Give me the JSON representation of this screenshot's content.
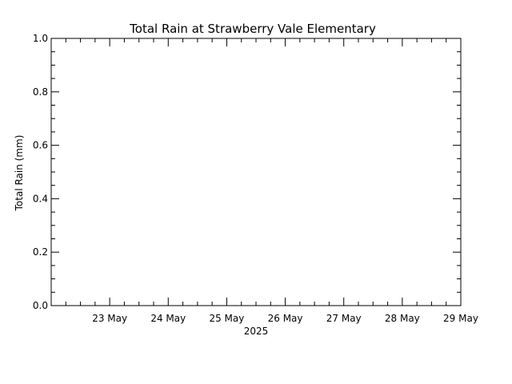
{
  "chart_data": {
    "type": "line",
    "title": "Total Rain at Strawberry Vale Elementary",
    "ylabel": "Total Rain (mm)",
    "xlabel": "2025",
    "ylim": [
      0,
      1
    ],
    "x_tick_labels": [
      "23 May",
      "24 May",
      "25 May",
      "26 May",
      "27 May",
      "28 May",
      "29 May"
    ],
    "xlim": [
      "2025-05-22T00:00",
      "2025-05-29T00:00"
    ],
    "y_ticks": [
      0.0,
      0.2,
      0.4,
      0.6,
      0.8,
      1.0
    ],
    "y_tick_labels": [
      "0.0",
      "0.2",
      "0.4",
      "0.6",
      "0.8",
      "1.0"
    ],
    "y_minor_step": 0.05,
    "x_minor_per_day": 4,
    "series": [],
    "grid": false,
    "colors": {
      "axis": "#000000",
      "background": "#ffffff"
    }
  }
}
